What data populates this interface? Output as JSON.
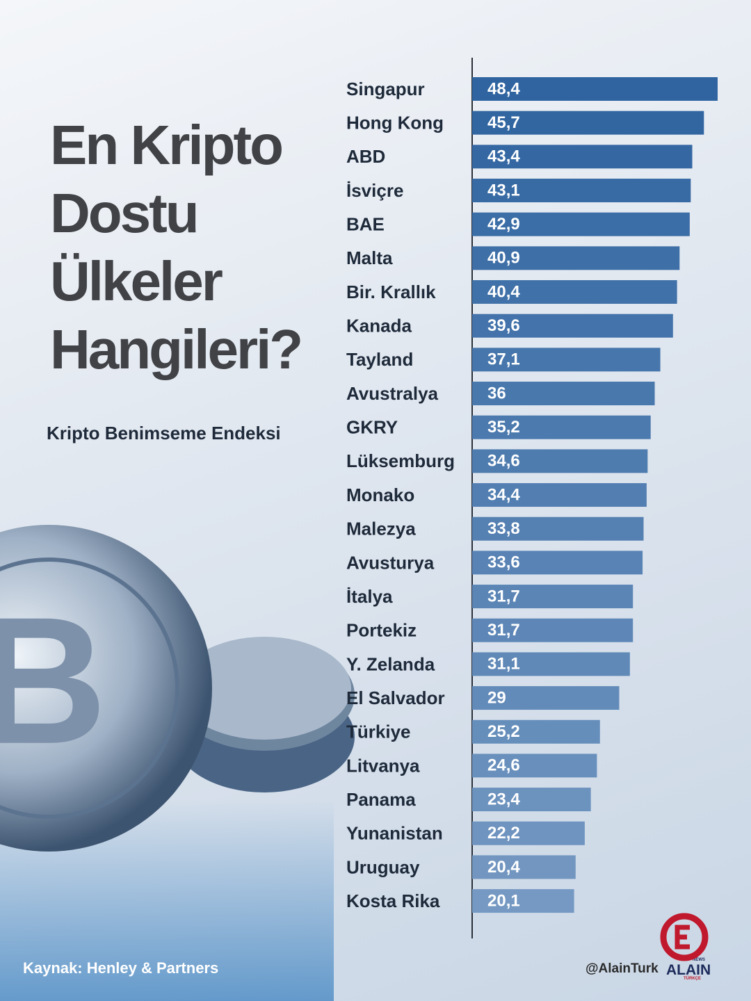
{
  "chart_data": {
    "type": "bar",
    "orientation": "horizontal",
    "title": "En Kripto Dostu Ülkeler Hangileri?",
    "subtitle": "Kripto Benimseme Endeksi",
    "source": "Kaynak: Henley & Partners",
    "handle": "@AlainTurk",
    "logo": {
      "name": "ALAIN",
      "top": "NEWS",
      "bottom": "TÜRKÇE"
    },
    "categories": [
      "Singapur",
      "Hong Kong",
      "ABD",
      "İsviçre",
      "BAE",
      "Malta",
      "Bir. Krallık",
      "Kanada",
      "Tayland",
      "Avustralya",
      "GKRY",
      "Lüksemburg",
      "Monako",
      "Malezya",
      "Avusturya",
      "İtalya",
      "Portekiz",
      "Y. Zelanda",
      "El Salvador",
      "Türkiye",
      "Litvanya",
      "Panama",
      "Yunanistan",
      "Uruguay",
      "Kosta Rika"
    ],
    "values": [
      48.4,
      45.7,
      43.4,
      43.1,
      42.9,
      40.9,
      40.4,
      39.6,
      37.1,
      36,
      35.2,
      34.6,
      34.4,
      33.8,
      33.6,
      31.7,
      31.7,
      31.1,
      29,
      25.2,
      24.6,
      23.4,
      22.2,
      20.4,
      20.1
    ],
    "value_labels": [
      "48,4",
      "45,7",
      "43,4",
      "43,1",
      "42,9",
      "40,9",
      "40,4",
      "39,6",
      "37,1",
      "36",
      "35,2",
      "34,6",
      "34,4",
      "33,8",
      "33,6",
      "31,7",
      "31,7",
      "31,1",
      "29",
      "25,2",
      "24,6",
      "23,4",
      "22,2",
      "20,4",
      "20,1"
    ],
    "color": "#2f64a0"
  }
}
